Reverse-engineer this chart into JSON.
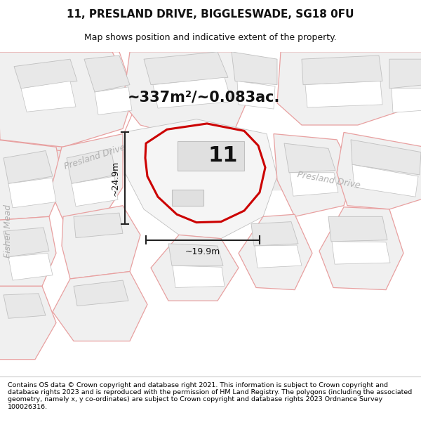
{
  "title_line1": "11, PRESLAND DRIVE, BIGGLESWADE, SG18 0FU",
  "title_line2": "Map shows position and indicative extent of the property.",
  "area_text": "~337m²/~0.083ac.",
  "label_number": "11",
  "dim_height": "~24.9m",
  "dim_width": "~19.9m",
  "road_label_left": "Presland Drive",
  "road_label_right": "Presland Drive",
  "road_label_vertical": "Fisher Mead",
  "footer_text": "Contains OS data © Crown copyright and database right 2021. This information is subject to Crown copyright and database rights 2023 and is reproduced with the permission of HM Land Registry. The polygons (including the associated geometry, namely x, y co-ordinates) are subject to Crown copyright and database rights 2023 Ordnance Survey 100026316.",
  "bg_color": "#ffffff",
  "map_bg": "#f7f7f7",
  "plot_fill": "#ffffff",
  "building_fill": "#e8e8e8",
  "building_edge_gray": "#c0c0c0",
  "building_edge_pink": "#e8a0a0",
  "parcel_edge_pink": "#e8a0a0",
  "road_fill": "#efefef",
  "plot_line_color": "#cc0000",
  "dim_line_color": "#222222",
  "road_label_color": "#b0b0b0",
  "text_color": "#111111",
  "title_fontsize": 11,
  "subtitle_fontsize": 9,
  "area_fontsize": 15,
  "number_fontsize": 22,
  "dim_fontsize": 9,
  "road_fontsize": 9,
  "footer_fontsize": 6.8
}
